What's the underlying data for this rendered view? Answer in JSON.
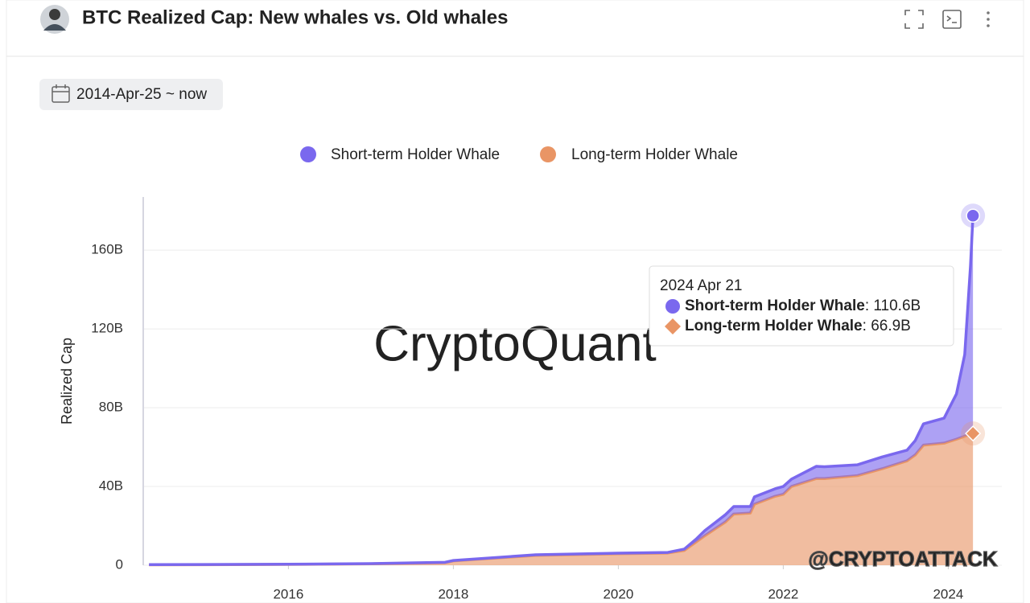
{
  "filter": "2014-Apr-25 ~ now",
  "watermarks": [
    "CryptoQuant",
    "@CRYPTOATTACK"
  ],
  "chart_data": {
    "type": "stacked-area",
    "title": "BTC Realized Cap: New whales vs. Old whales",
    "ylabel": "Realized Cap",
    "x": [
      2014.31,
      2016,
      2017,
      2017.9,
      2018,
      2019,
      2020,
      2020.6,
      2020.8,
      2020.95,
      2021.05,
      2021.3,
      2021.4,
      2021.6,
      2021.65,
      2021.9,
      2022,
      2022.1,
      2022.4,
      2022.5,
      2022.9,
      2023.2,
      2023.5,
      2023.6,
      2023.7,
      2023.95,
      2024.1,
      2024.2,
      2024.27,
      2024.3
    ],
    "series": [
      {
        "name": "Short-term Holder Whale",
        "color": "#7a68ee",
        "values": [
          0.1,
          0.1,
          0.1,
          0.2,
          0.2,
          0.3,
          0.3,
          0.3,
          0.7,
          1.5,
          2.6,
          3.7,
          3.8,
          3.3,
          3.7,
          3.8,
          4,
          3.7,
          6.2,
          6,
          5.5,
          6,
          5.4,
          7.3,
          10.8,
          12.7,
          23,
          41.5,
          85.5,
          110.6
        ]
      },
      {
        "name": "Long-term Holder Whale",
        "color": "#e99565",
        "values": [
          0.2,
          0.4,
          0.7,
          1.3,
          2.2,
          5,
          5.8,
          6.2,
          7.5,
          12,
          15,
          22,
          26,
          26.5,
          31,
          35,
          36,
          40,
          44,
          44,
          45.5,
          49,
          53,
          56,
          61,
          62,
          64,
          65.5,
          66.5,
          66.9
        ]
      }
    ],
    "xlim": [
      2014.24,
      2024.65
    ],
    "xticks": [
      2016,
      2018,
      2020,
      2022,
      2024
    ],
    "ylim": [
      0,
      187
    ],
    "yticks": [
      0,
      {
        "value": 40,
        "label": "40B"
      },
      {
        "value": 80,
        "label": "80B"
      },
      {
        "value": 120,
        "label": "120B"
      },
      {
        "value": 160,
        "label": "160B"
      }
    ],
    "grid": true,
    "tooltip": {
      "title": "2024 Apr 21",
      "separator": ": ",
      "values": [
        "110.6B",
        "66.9B"
      ]
    }
  }
}
